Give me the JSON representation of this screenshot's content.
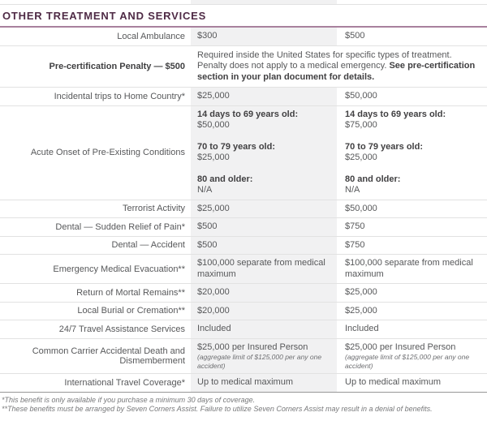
{
  "section_title": "OTHER TREATMENT AND SERVICES",
  "colors": {
    "header_text": "#4f2b46",
    "header_underline": "#a8819d",
    "shaded_column_bg": "#f1f1f2",
    "row_divider": "#e2e2e2",
    "footnote_divider": "#979797",
    "body_text": "#57585a",
    "bold_text": "#414042"
  },
  "table": {
    "rows": [
      {
        "label": "Local Ambulance",
        "label_bold": false,
        "span": false,
        "cells": [
          {
            "blocks": [
              {
                "segments": [
                  {
                    "text": "$300",
                    "bold": false
                  }
                ]
              }
            ]
          },
          {
            "blocks": [
              {
                "segments": [
                  {
                    "text": "$500",
                    "bold": false
                  }
                ]
              }
            ]
          }
        ]
      },
      {
        "label": "Pre-certification Penalty — $500",
        "label_bold": true,
        "span": true,
        "cells": [
          {
            "blocks": [
              {
                "segments": [
                  {
                    "text": "Required inside the United States for specific types of treatment. Penalty does not apply to a medical emergency. ",
                    "bold": false
                  },
                  {
                    "text": "See pre-certification section in your plan document for details.",
                    "bold": true
                  }
                ]
              }
            ]
          }
        ]
      },
      {
        "label": "Incidental trips to Home Country*",
        "label_bold": false,
        "span": false,
        "cells": [
          {
            "blocks": [
              {
                "segments": [
                  {
                    "text": "$25,000",
                    "bold": false
                  }
                ]
              }
            ]
          },
          {
            "blocks": [
              {
                "segments": [
                  {
                    "text": "$50,000",
                    "bold": false
                  }
                ]
              }
            ]
          }
        ]
      },
      {
        "label": "Acute Onset of Pre-Existing Conditions",
        "label_bold": false,
        "span": false,
        "cells": [
          {
            "blocks": [
              {
                "segments": [
                  {
                    "text": "14 days to 69 years old:",
                    "bold": true
                  }
                ]
              },
              {
                "segments": [
                  {
                    "text": "$50,000",
                    "bold": false
                  }
                ]
              },
              {
                "gap": true,
                "segments": [
                  {
                    "text": "70 to 79 years old:",
                    "bold": true
                  }
                ]
              },
              {
                "segments": [
                  {
                    "text": "$25,000",
                    "bold": false
                  }
                ]
              },
              {
                "gap": true,
                "segments": [
                  {
                    "text": "80 and older:",
                    "bold": true
                  }
                ]
              },
              {
                "segments": [
                  {
                    "text": "N/A",
                    "bold": false
                  }
                ]
              }
            ]
          },
          {
            "blocks": [
              {
                "segments": [
                  {
                    "text": "14 days to 69 years old:",
                    "bold": true
                  }
                ]
              },
              {
                "segments": [
                  {
                    "text": "$75,000",
                    "bold": false
                  }
                ]
              },
              {
                "gap": true,
                "segments": [
                  {
                    "text": "70 to 79 years old:",
                    "bold": true
                  }
                ]
              },
              {
                "segments": [
                  {
                    "text": "$25,000",
                    "bold": false
                  }
                ]
              },
              {
                "gap": true,
                "segments": [
                  {
                    "text": "80 and older:",
                    "bold": true
                  }
                ]
              },
              {
                "segments": [
                  {
                    "text": "N/A",
                    "bold": false
                  }
                ]
              }
            ]
          }
        ]
      },
      {
        "label": "Terrorist Activity",
        "label_bold": false,
        "span": false,
        "cells": [
          {
            "blocks": [
              {
                "segments": [
                  {
                    "text": "$25,000",
                    "bold": false
                  }
                ]
              }
            ]
          },
          {
            "blocks": [
              {
                "segments": [
                  {
                    "text": "$50,000",
                    "bold": false
                  }
                ]
              }
            ]
          }
        ]
      },
      {
        "label": "Dental — Sudden Relief of Pain*",
        "label_bold": false,
        "span": false,
        "cells": [
          {
            "blocks": [
              {
                "segments": [
                  {
                    "text": "$500",
                    "bold": false
                  }
                ]
              }
            ]
          },
          {
            "blocks": [
              {
                "segments": [
                  {
                    "text": "$750",
                    "bold": false
                  }
                ]
              }
            ]
          }
        ]
      },
      {
        "label": "Dental — Accident",
        "label_bold": false,
        "span": false,
        "cells": [
          {
            "blocks": [
              {
                "segments": [
                  {
                    "text": "$500",
                    "bold": false
                  }
                ]
              }
            ]
          },
          {
            "blocks": [
              {
                "segments": [
                  {
                    "text": "$750",
                    "bold": false
                  }
                ]
              }
            ]
          }
        ]
      },
      {
        "label": "Emergency Medical Evacuation**",
        "label_bold": false,
        "span": false,
        "cells": [
          {
            "blocks": [
              {
                "segments": [
                  {
                    "text": "$100,000 separate from medical maximum",
                    "bold": false
                  }
                ]
              }
            ]
          },
          {
            "blocks": [
              {
                "segments": [
                  {
                    "text": "$100,000 separate from medical maximum",
                    "bold": false
                  }
                ]
              }
            ]
          }
        ]
      },
      {
        "label": "Return of Mortal Remains**",
        "label_bold": false,
        "span": false,
        "cells": [
          {
            "blocks": [
              {
                "segments": [
                  {
                    "text": "$20,000",
                    "bold": false
                  }
                ]
              }
            ]
          },
          {
            "blocks": [
              {
                "segments": [
                  {
                    "text": "$25,000",
                    "bold": false
                  }
                ]
              }
            ]
          }
        ]
      },
      {
        "label": "Local Burial or Cremation**",
        "label_bold": false,
        "span": false,
        "cells": [
          {
            "blocks": [
              {
                "segments": [
                  {
                    "text": "$20,000",
                    "bold": false
                  }
                ]
              }
            ]
          },
          {
            "blocks": [
              {
                "segments": [
                  {
                    "text": "$25,000",
                    "bold": false
                  }
                ]
              }
            ]
          }
        ]
      },
      {
        "label": "24/7 Travel Assistance Services",
        "label_bold": false,
        "span": false,
        "cells": [
          {
            "blocks": [
              {
                "segments": [
                  {
                    "text": "Included",
                    "bold": false
                  }
                ]
              }
            ]
          },
          {
            "blocks": [
              {
                "segments": [
                  {
                    "text": "Included",
                    "bold": false
                  }
                ]
              }
            ]
          }
        ]
      },
      {
        "label": "Common Carrier Accidental Death and Dismemberment",
        "label_bold": false,
        "span": false,
        "cells": [
          {
            "blocks": [
              {
                "segments": [
                  {
                    "text": "$25,000 per Insured Person",
                    "bold": false
                  }
                ]
              },
              {
                "small": true,
                "segments": [
                  {
                    "text": "(aggregate limit of $125,000 per any one accident)",
                    "bold": false
                  }
                ]
              }
            ]
          },
          {
            "blocks": [
              {
                "segments": [
                  {
                    "text": "$25,000 per Insured Person",
                    "bold": false
                  }
                ]
              },
              {
                "small": true,
                "segments": [
                  {
                    "text": "(aggregate limit of $125,000 per any one accident)",
                    "bold": false
                  }
                ]
              }
            ]
          }
        ]
      },
      {
        "label": "International Travel Coverage*",
        "label_bold": false,
        "span": false,
        "cells": [
          {
            "blocks": [
              {
                "segments": [
                  {
                    "text": "Up to medical maximum",
                    "bold": false
                  }
                ]
              }
            ]
          },
          {
            "blocks": [
              {
                "segments": [
                  {
                    "text": "Up to medical maximum",
                    "bold": false
                  }
                ]
              }
            ]
          }
        ]
      }
    ]
  },
  "footnotes": [
    "*This benefit is only available if you purchase a minimum 30 days of coverage.",
    "**These benefits must be arranged by Seven Corners Assist. Failure to utilize Seven Corners Assist may result in a denial of benefits."
  ]
}
